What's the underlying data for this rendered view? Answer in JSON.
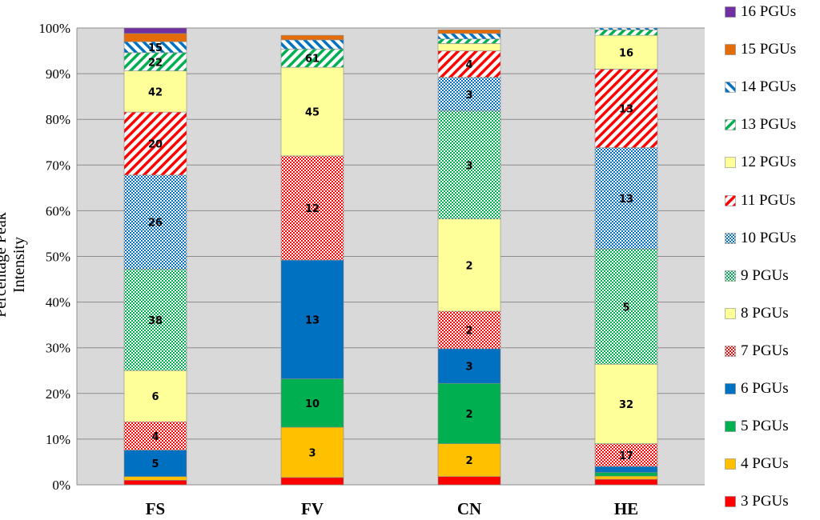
{
  "chart_data": {
    "type": "bar",
    "stacked": true,
    "normalized": true,
    "ylabel": "Percentage  Peak  Intensity",
    "xlabel": "",
    "ylim": [
      0,
      100
    ],
    "yticks": [
      "0%",
      "10%",
      "20%",
      "30%",
      "40%",
      "50%",
      "60%",
      "70%",
      "80%",
      "90%",
      "100%"
    ],
    "categories": [
      "FS",
      "FV",
      "CN",
      "HE"
    ],
    "legend_position": "right",
    "series": [
      {
        "name": "3 PGUs",
        "color": "#ff0000",
        "pattern": "solid",
        "values": [
          1.0,
          1.6,
          1.8,
          1.2
        ],
        "labels": [
          "",
          "",
          "",
          ""
        ]
      },
      {
        "name": "4 PGUs",
        "color": "#ffc000",
        "pattern": "solid",
        "values": [
          0.8,
          11.0,
          7.2,
          0.7
        ],
        "labels": [
          "",
          "3",
          "2",
          ""
        ]
      },
      {
        "name": "5 PGUs",
        "color": "#00b050",
        "pattern": "solid",
        "values": [
          0.0,
          10.6,
          13.2,
          0.8
        ],
        "labels": [
          "",
          "10",
          "2",
          ""
        ]
      },
      {
        "name": "6 PGUs",
        "color": "#0070c0",
        "pattern": "solid",
        "values": [
          5.8,
          26.0,
          7.6,
          1.3
        ],
        "labels": [
          "5",
          "13",
          "3",
          ""
        ]
      },
      {
        "name": "7 PGUs",
        "color": "#ff0000",
        "pattern": "checker",
        "values": [
          6.2,
          22.8,
          8.2,
          5.0
        ],
        "labels": [
          "4",
          "12",
          "2",
          "17"
        ]
      },
      {
        "name": "8 PGUs",
        "color": "#ffff00",
        "pattern": "solid-pale",
        "values": [
          11.2,
          0.0,
          20.2,
          17.4
        ],
        "labels": [
          "6",
          "",
          "2",
          "32"
        ]
      },
      {
        "name": "9 PGUs",
        "color": "#00b050",
        "pattern": "checker",
        "values": [
          22.2,
          0.0,
          23.6,
          25.2
        ],
        "labels": [
          "38",
          "",
          "3",
          "5"
        ]
      },
      {
        "name": "10 PGUs",
        "color": "#0070c0",
        "pattern": "checker",
        "values": [
          20.6,
          0.0,
          7.4,
          22.2
        ],
        "labels": [
          "26",
          "",
          "3",
          "13"
        ]
      },
      {
        "name": "11 PGUs",
        "color": "#ff0000",
        "pattern": "diagonal",
        "values": [
          13.8,
          0.0,
          5.8,
          17.2
        ],
        "labels": [
          "20",
          "",
          "4",
          "13"
        ]
      },
      {
        "name": "12 PGUs",
        "color": "#ffff00",
        "pattern": "solid-pale",
        "values": [
          9.0,
          19.4,
          1.6,
          7.4
        ],
        "labels": [
          "42",
          "45",
          "",
          "16"
        ]
      },
      {
        "name": "13 PGUs",
        "color": "#00b050",
        "pattern": "diagonal",
        "values": [
          4.0,
          4.0,
          1.0,
          1.2
        ],
        "labels": [
          "22",
          "61",
          "",
          ""
        ]
      },
      {
        "name": "14 PGUs",
        "color": "#0070c0",
        "pattern": "diagonal-rev",
        "values": [
          2.4,
          2.0,
          1.2,
          0.4
        ],
        "labels": [
          "15",
          "",
          "",
          ""
        ]
      },
      {
        "name": "15 PGUs",
        "color": "#e36c09",
        "pattern": "solid",
        "values": [
          1.8,
          1.0,
          0.8,
          0.0
        ],
        "labels": [
          "",
          "",
          "",
          ""
        ]
      },
      {
        "name": "16 PGUs",
        "color": "#7030a0",
        "pattern": "solid",
        "values": [
          1.2,
          0.0,
          0.0,
          0.0
        ],
        "labels": [
          "",
          "",
          "",
          ""
        ]
      }
    ]
  }
}
